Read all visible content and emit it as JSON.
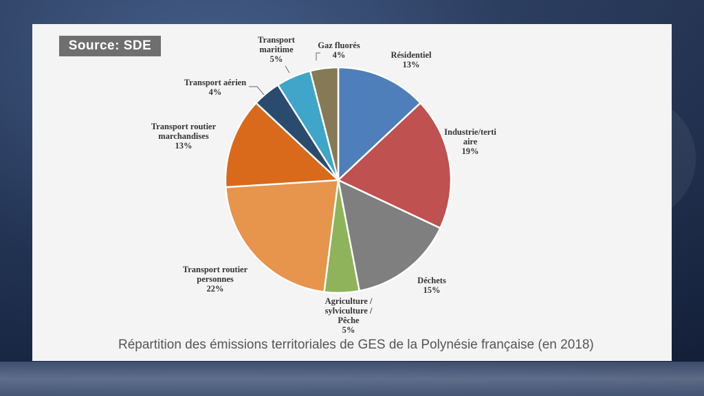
{
  "source_label": "Source: SDE",
  "caption": "Répartition des émissions territoriales de GES de la Polynésie française (en 2018)",
  "chart_data": {
    "type": "pie",
    "slices": [
      {
        "label": "Résidentiel",
        "value": 13,
        "value_label": "13%",
        "color": "#4f7fbb"
      },
      {
        "label": "Industrie/tertiaire",
        "value": 19,
        "value_label": "19%",
        "color": "#bf5151"
      },
      {
        "label": "Déchets",
        "value": 15,
        "value_label": "15%",
        "color": "#7f7f7f"
      },
      {
        "label": "Agriculture / sylviculture / Pêche",
        "value": 5,
        "value_label": "5%",
        "color": "#8fb35a"
      },
      {
        "label": "Transport routier personnes",
        "value": 22,
        "value_label": "22%",
        "color": "#e7944c"
      },
      {
        "label": "Transport routier marchandises",
        "value": 13,
        "value_label": "13%",
        "color": "#d96a1b"
      },
      {
        "label": "Transport aérien",
        "value": 4,
        "value_label": "4%",
        "color": "#2a4a6e"
      },
      {
        "label": "Transport maritime",
        "value": 5,
        "value_label": "5%",
        "color": "#3fa6c9"
      },
      {
        "label": "Gaz fluorés",
        "value": 4,
        "value_label": "4%",
        "color": "#857a55"
      }
    ]
  }
}
